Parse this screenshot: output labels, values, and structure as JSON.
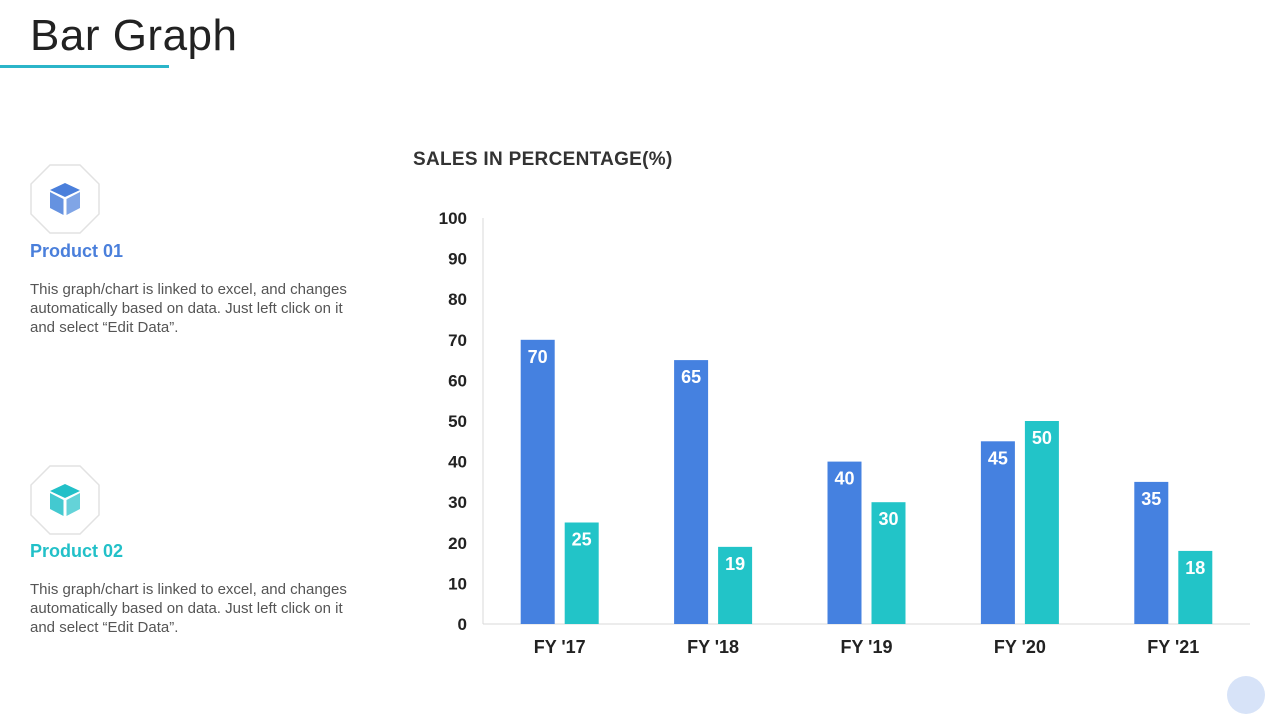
{
  "page": {
    "title": "Bar Graph",
    "accent_color": "#2bb5c9"
  },
  "products": [
    {
      "name": "Product 01",
      "description": "This graph/chart is linked to excel, and changes automatically based on data. Just left click on it and select “Edit Data”.",
      "icon": "box-icon",
      "color": "#4a7fdb"
    },
    {
      "name": "Product 02",
      "description": "This graph/chart is linked to excel, and changes automatically based on data. Just left click on it and select “Edit Data”.",
      "icon": "box-icon",
      "color": "#22c0c8"
    }
  ],
  "chart_data": {
    "type": "bar",
    "title": "SALES IN PERCENTAGE(%)",
    "xlabel": "",
    "ylabel": "",
    "categories": [
      "FY '17",
      "FY '18",
      "FY '19",
      "FY '20",
      "FY '21"
    ],
    "series": [
      {
        "name": "Product 01",
        "values": [
          70,
          65,
          40,
          45,
          35
        ],
        "color": "#4581e0"
      },
      {
        "name": "Product 02",
        "values": [
          25,
          19,
          30,
          50,
          18
        ],
        "color": "#22c4c8"
      }
    ],
    "ylim": [
      0,
      100
    ],
    "yticks": [
      "0",
      "10",
      "20",
      "30",
      "40",
      "50",
      "60",
      "70",
      "80",
      "90",
      "100"
    ],
    "grid": false,
    "legend": "none"
  }
}
